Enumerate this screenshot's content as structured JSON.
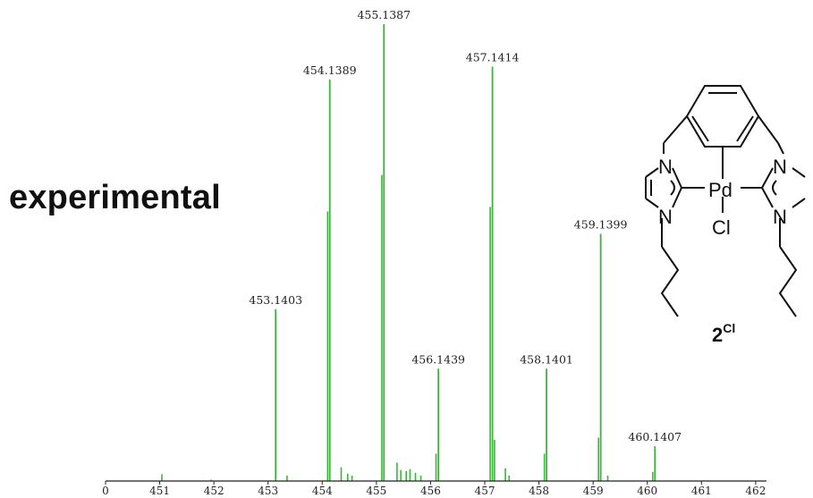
{
  "chart_data": {
    "type": "bar",
    "title": "experimental",
    "xlabel": "",
    "ylabel": "",
    "xlim": [
      450.0,
      462.2
    ],
    "ylim": [
      0,
      100
    ],
    "x_ticks": [
      "0",
      "451",
      "452",
      "453",
      "454",
      "455",
      "456",
      "457",
      "458",
      "459",
      "460",
      "461",
      "462"
    ],
    "bar_color": "#3cb43c",
    "peaks": [
      {
        "x": 453.1403,
        "y": 37.6,
        "label": "453.1403"
      },
      {
        "x": 454.1389,
        "y": 87.9,
        "label": "454.1389"
      },
      {
        "x": 455.1387,
        "y": 100.0,
        "label": "455.1387"
      },
      {
        "x": 456.1439,
        "y": 24.6,
        "label": "456.1439"
      },
      {
        "x": 457.1414,
        "y": 90.7,
        "label": "457.1414"
      },
      {
        "x": 458.1401,
        "y": 24.6,
        "label": "458.1401"
      },
      {
        "x": 459.1399,
        "y": 54.1,
        "label": "459.1399"
      },
      {
        "x": 460.1407,
        "y": 7.6,
        "label": "460.1407"
      }
    ],
    "minor_peaks": [
      {
        "x": 451.04,
        "y": 1.5
      },
      {
        "x": 451.95,
        "y": 0.3
      },
      {
        "x": 453.35,
        "y": 1.2
      },
      {
        "x": 454.1,
        "y": 59.0
      },
      {
        "x": 454.35,
        "y": 3.0
      },
      {
        "x": 454.47,
        "y": 1.6
      },
      {
        "x": 454.55,
        "y": 1.2
      },
      {
        "x": 455.1,
        "y": 67.0
      },
      {
        "x": 455.38,
        "y": 4.0
      },
      {
        "x": 455.45,
        "y": 2.4
      },
      {
        "x": 455.55,
        "y": 2.2
      },
      {
        "x": 455.62,
        "y": 2.6
      },
      {
        "x": 455.72,
        "y": 1.8
      },
      {
        "x": 455.82,
        "y": 1.2
      },
      {
        "x": 456.1,
        "y": 6.0
      },
      {
        "x": 457.1,
        "y": 60.0
      },
      {
        "x": 457.18,
        "y": 9.0
      },
      {
        "x": 457.38,
        "y": 2.8
      },
      {
        "x": 457.45,
        "y": 1.2
      },
      {
        "x": 458.1,
        "y": 6.0
      },
      {
        "x": 459.1,
        "y": 9.5
      },
      {
        "x": 459.27,
        "y": 1.2
      },
      {
        "x": 460.1,
        "y": 2.0
      }
    ],
    "compound": {
      "label_main": "2",
      "label_sup": "Cl",
      "metal": "Pd",
      "halide": "Cl",
      "nitrogen": "N"
    }
  }
}
